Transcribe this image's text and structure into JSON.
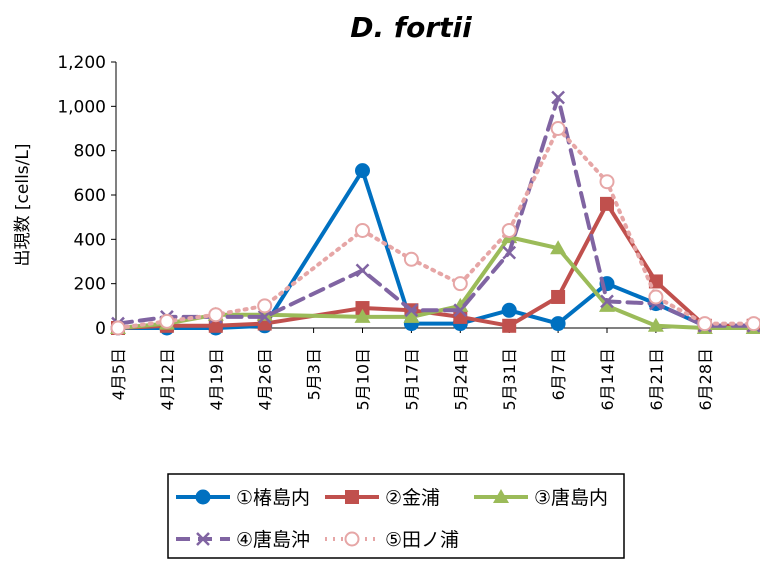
{
  "chart_data": {
    "type": "line",
    "title": "D. fortii",
    "ylabel": "出現数 [cells/L]",
    "xlabel": "",
    "ylim": [
      0,
      1200
    ],
    "yticks": [
      "0",
      "200",
      "400",
      "600",
      "800",
      "1,000",
      "1,200"
    ],
    "ytick_values": [
      0,
      200,
      400,
      600,
      800,
      1000,
      1200
    ],
    "categories": [
      "4月5日",
      "4月12日",
      "4月19日",
      "4月26日",
      "5月3日",
      "5月10日",
      "5月17日",
      "5月24日",
      "5月31日",
      "6月7日",
      "6月14日",
      "6月21日",
      "6月28日"
    ],
    "x": [
      0,
      1,
      2,
      3,
      5,
      6,
      7,
      8,
      9,
      10,
      11,
      12,
      13
    ],
    "grid": false,
    "legend": "bottom",
    "series": [
      {
        "name": "①椿島内",
        "color": "#0070C0",
        "dash": "solid",
        "marker": "circle",
        "values": [
          0,
          0,
          0,
          10,
          710,
          20,
          20,
          80,
          20,
          200,
          110,
          10,
          10
        ]
      },
      {
        "name": "②金浦",
        "color": "#C0504D",
        "dash": "solid",
        "marker": "square",
        "values": [
          0,
          10,
          10,
          20,
          90,
          80,
          50,
          10,
          140,
          560,
          210,
          10,
          10
        ]
      },
      {
        "name": "③唐島内",
        "color": "#9BBB59",
        "dash": "solid",
        "marker": "triangle",
        "values": [
          0,
          20,
          60,
          60,
          50,
          50,
          100,
          410,
          360,
          100,
          10,
          0,
          0
        ]
      },
      {
        "name": "④唐島沖",
        "color": "#8064A2",
        "dash": "dash",
        "marker": "x",
        "values": [
          20,
          50,
          50,
          50,
          260,
          80,
          80,
          340,
          1040,
          120,
          110,
          10,
          10
        ]
      },
      {
        "name": "⑤田ノ浦",
        "color": "#E6A6A6",
        "dash": "dot",
        "marker": "open-circle",
        "values": [
          0,
          30,
          60,
          100,
          440,
          310,
          200,
          440,
          900,
          660,
          140,
          20,
          20
        ]
      }
    ]
  }
}
